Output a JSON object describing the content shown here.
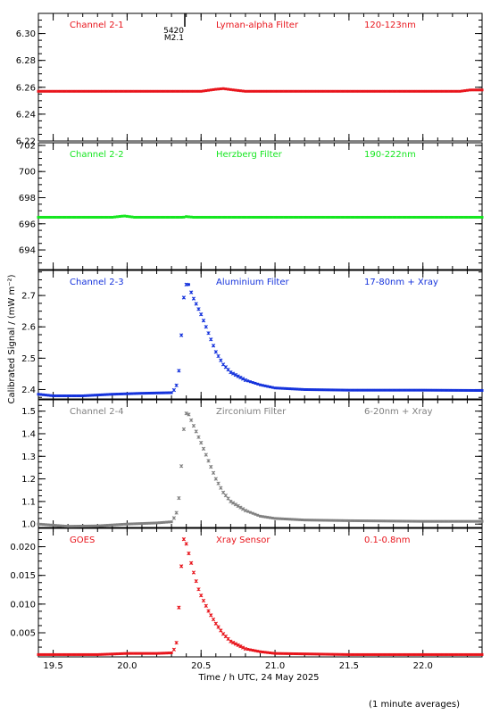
{
  "chart_data": {
    "type": "scatter",
    "xlabel": "Time / h UTC, 24 May 2025",
    "ylabel": "Calibrated Signal / (mW m⁻²)",
    "footer": "(1 minute averages)",
    "x_tick_labels": [
      "19.5",
      "20.0",
      "20.5",
      "21.0",
      "21.5",
      "22.0"
    ],
    "xlim": [
      19.4,
      22.4
    ],
    "event_marker": {
      "x": 20.39,
      "label_line1": "5420",
      "label_line2": "M2.1"
    },
    "panels": [
      {
        "label": "Channel 2-1",
        "filter": "Lyman-alpha Filter",
        "band": "120-123nm",
        "color": "#e8141b",
        "ylim": [
          6.22,
          6.315
        ],
        "yticks": [
          6.22,
          6.24,
          6.26,
          6.28,
          6.3
        ],
        "ytick_labels": [
          "6.22",
          "6.24",
          "6.26",
          "6.28",
          "6.30"
        ],
        "series": [
          [
            19.4,
            6.257
          ],
          [
            20.3,
            6.257
          ],
          [
            20.5,
            6.257
          ],
          [
            20.6,
            6.2585
          ],
          [
            20.65,
            6.259
          ],
          [
            20.72,
            6.258
          ],
          [
            20.8,
            6.257
          ],
          [
            21.5,
            6.257
          ],
          [
            22.25,
            6.257
          ],
          [
            22.32,
            6.258
          ],
          [
            22.4,
            6.258
          ]
        ]
      },
      {
        "label": "Channel 2-2",
        "filter": "Herzberg Filter",
        "band": "190-222nm",
        "color": "#14e61e",
        "ylim": [
          692.5,
          702.2
        ],
        "yticks": [
          694,
          696,
          698,
          700,
          702
        ],
        "ytick_labels": [
          "694",
          "696",
          "698",
          "700",
          "702"
        ],
        "series": [
          [
            19.4,
            696.5
          ],
          [
            19.9,
            696.5
          ],
          [
            19.98,
            696.6
          ],
          [
            20.05,
            696.5
          ],
          [
            20.38,
            696.5
          ],
          [
            20.4,
            696.55
          ],
          [
            20.45,
            696.5
          ],
          [
            22.4,
            696.5
          ]
        ]
      },
      {
        "label": "Channel 2-3",
        "filter": "Aluminium Filter",
        "band": "17-80nm + Xray",
        "color": "#1432dc",
        "ylim": [
          2.37,
          2.78
        ],
        "yticks": [
          2.4,
          2.5,
          2.6,
          2.7
        ],
        "ytick_labels": [
          "2.4",
          "2.5",
          "2.6",
          "2.7"
        ],
        "series": [
          [
            19.4,
            2.385
          ],
          [
            19.5,
            2.38
          ],
          [
            19.7,
            2.38
          ],
          [
            19.9,
            2.385
          ],
          [
            20.1,
            2.388
          ],
          [
            20.3,
            2.39
          ],
          [
            20.32,
            2.4
          ],
          [
            20.34,
            2.42
          ],
          [
            20.36,
            2.5
          ],
          [
            20.37,
            2.61
          ],
          [
            20.38,
            2.68
          ],
          [
            20.39,
            2.72
          ],
          [
            20.4,
            2.735
          ],
          [
            20.41,
            2.745
          ],
          [
            20.42,
            2.73
          ],
          [
            20.44,
            2.7
          ],
          [
            20.46,
            2.68
          ],
          [
            20.48,
            2.66
          ],
          [
            20.5,
            2.64
          ],
          [
            20.55,
            2.58
          ],
          [
            20.6,
            2.52
          ],
          [
            20.65,
            2.48
          ],
          [
            20.7,
            2.455
          ],
          [
            20.8,
            2.43
          ],
          [
            20.9,
            2.415
          ],
          [
            21.0,
            2.405
          ],
          [
            21.2,
            2.4
          ],
          [
            21.5,
            2.398
          ],
          [
            22.0,
            2.398
          ],
          [
            22.4,
            2.397
          ]
        ]
      },
      {
        "label": "Channel 2-4",
        "filter": "Zirconium Filter",
        "band": "6-20nm + Xray",
        "color": "#808080",
        "ylim": [
          0.985,
          1.55
        ],
        "yticks": [
          1.0,
          1.1,
          1.2,
          1.3,
          1.4,
          1.5
        ],
        "ytick_labels": [
          "1.0",
          "1.1",
          "1.2",
          "1.3",
          "1.4",
          "1.5"
        ],
        "series": [
          [
            19.4,
            1.0
          ],
          [
            19.6,
            0.99
          ],
          [
            19.8,
            0.992
          ],
          [
            20.0,
            1.0
          ],
          [
            20.2,
            1.005
          ],
          [
            20.3,
            1.01
          ],
          [
            20.32,
            1.03
          ],
          [
            20.34,
            1.06
          ],
          [
            20.36,
            1.17
          ],
          [
            20.37,
            1.3
          ],
          [
            20.38,
            1.4
          ],
          [
            20.39,
            1.46
          ],
          [
            20.4,
            1.49
          ],
          [
            20.41,
            1.495
          ],
          [
            20.42,
            1.48
          ],
          [
            20.44,
            1.45
          ],
          [
            20.46,
            1.42
          ],
          [
            20.48,
            1.39
          ],
          [
            20.5,
            1.36
          ],
          [
            20.55,
            1.28
          ],
          [
            20.6,
            1.2
          ],
          [
            20.65,
            1.14
          ],
          [
            20.7,
            1.1
          ],
          [
            20.8,
            1.06
          ],
          [
            20.9,
            1.035
          ],
          [
            21.0,
            1.025
          ],
          [
            21.2,
            1.018
          ],
          [
            21.5,
            1.015
          ],
          [
            22.0,
            1.012
          ],
          [
            22.4,
            1.012
          ]
        ]
      },
      {
        "label": "GOES",
        "filter": "Xray Sensor",
        "band": "0.1-0.8nm",
        "color": "#e8141b",
        "ylim": [
          0.0008,
          0.0232
        ],
        "yticks": [
          0.005,
          0.01,
          0.015,
          0.02
        ],
        "ytick_labels": [
          "0.005",
          "0.010",
          "0.015",
          "0.020"
        ],
        "series": [
          [
            19.4,
            0.0012
          ],
          [
            19.8,
            0.0012
          ],
          [
            20.0,
            0.0014
          ],
          [
            20.2,
            0.0014
          ],
          [
            20.3,
            0.0015
          ],
          [
            20.32,
            0.0022
          ],
          [
            20.34,
            0.0038
          ],
          [
            20.35,
            0.0094
          ],
          [
            20.36,
            0.0134
          ],
          [
            20.37,
            0.0182
          ],
          [
            20.38,
            0.0212
          ],
          [
            20.39,
            0.0215
          ],
          [
            20.41,
            0.0195
          ],
          [
            20.43,
            0.0175
          ],
          [
            20.45,
            0.0155
          ],
          [
            20.48,
            0.0128
          ],
          [
            20.5,
            0.0115
          ],
          [
            20.55,
            0.0088
          ],
          [
            20.6,
            0.0066
          ],
          [
            20.65,
            0.0048
          ],
          [
            20.7,
            0.0035
          ],
          [
            20.8,
            0.0022
          ],
          [
            20.9,
            0.0017
          ],
          [
            21.0,
            0.0014
          ],
          [
            21.5,
            0.0012
          ],
          [
            22.4,
            0.0012
          ]
        ]
      }
    ]
  }
}
